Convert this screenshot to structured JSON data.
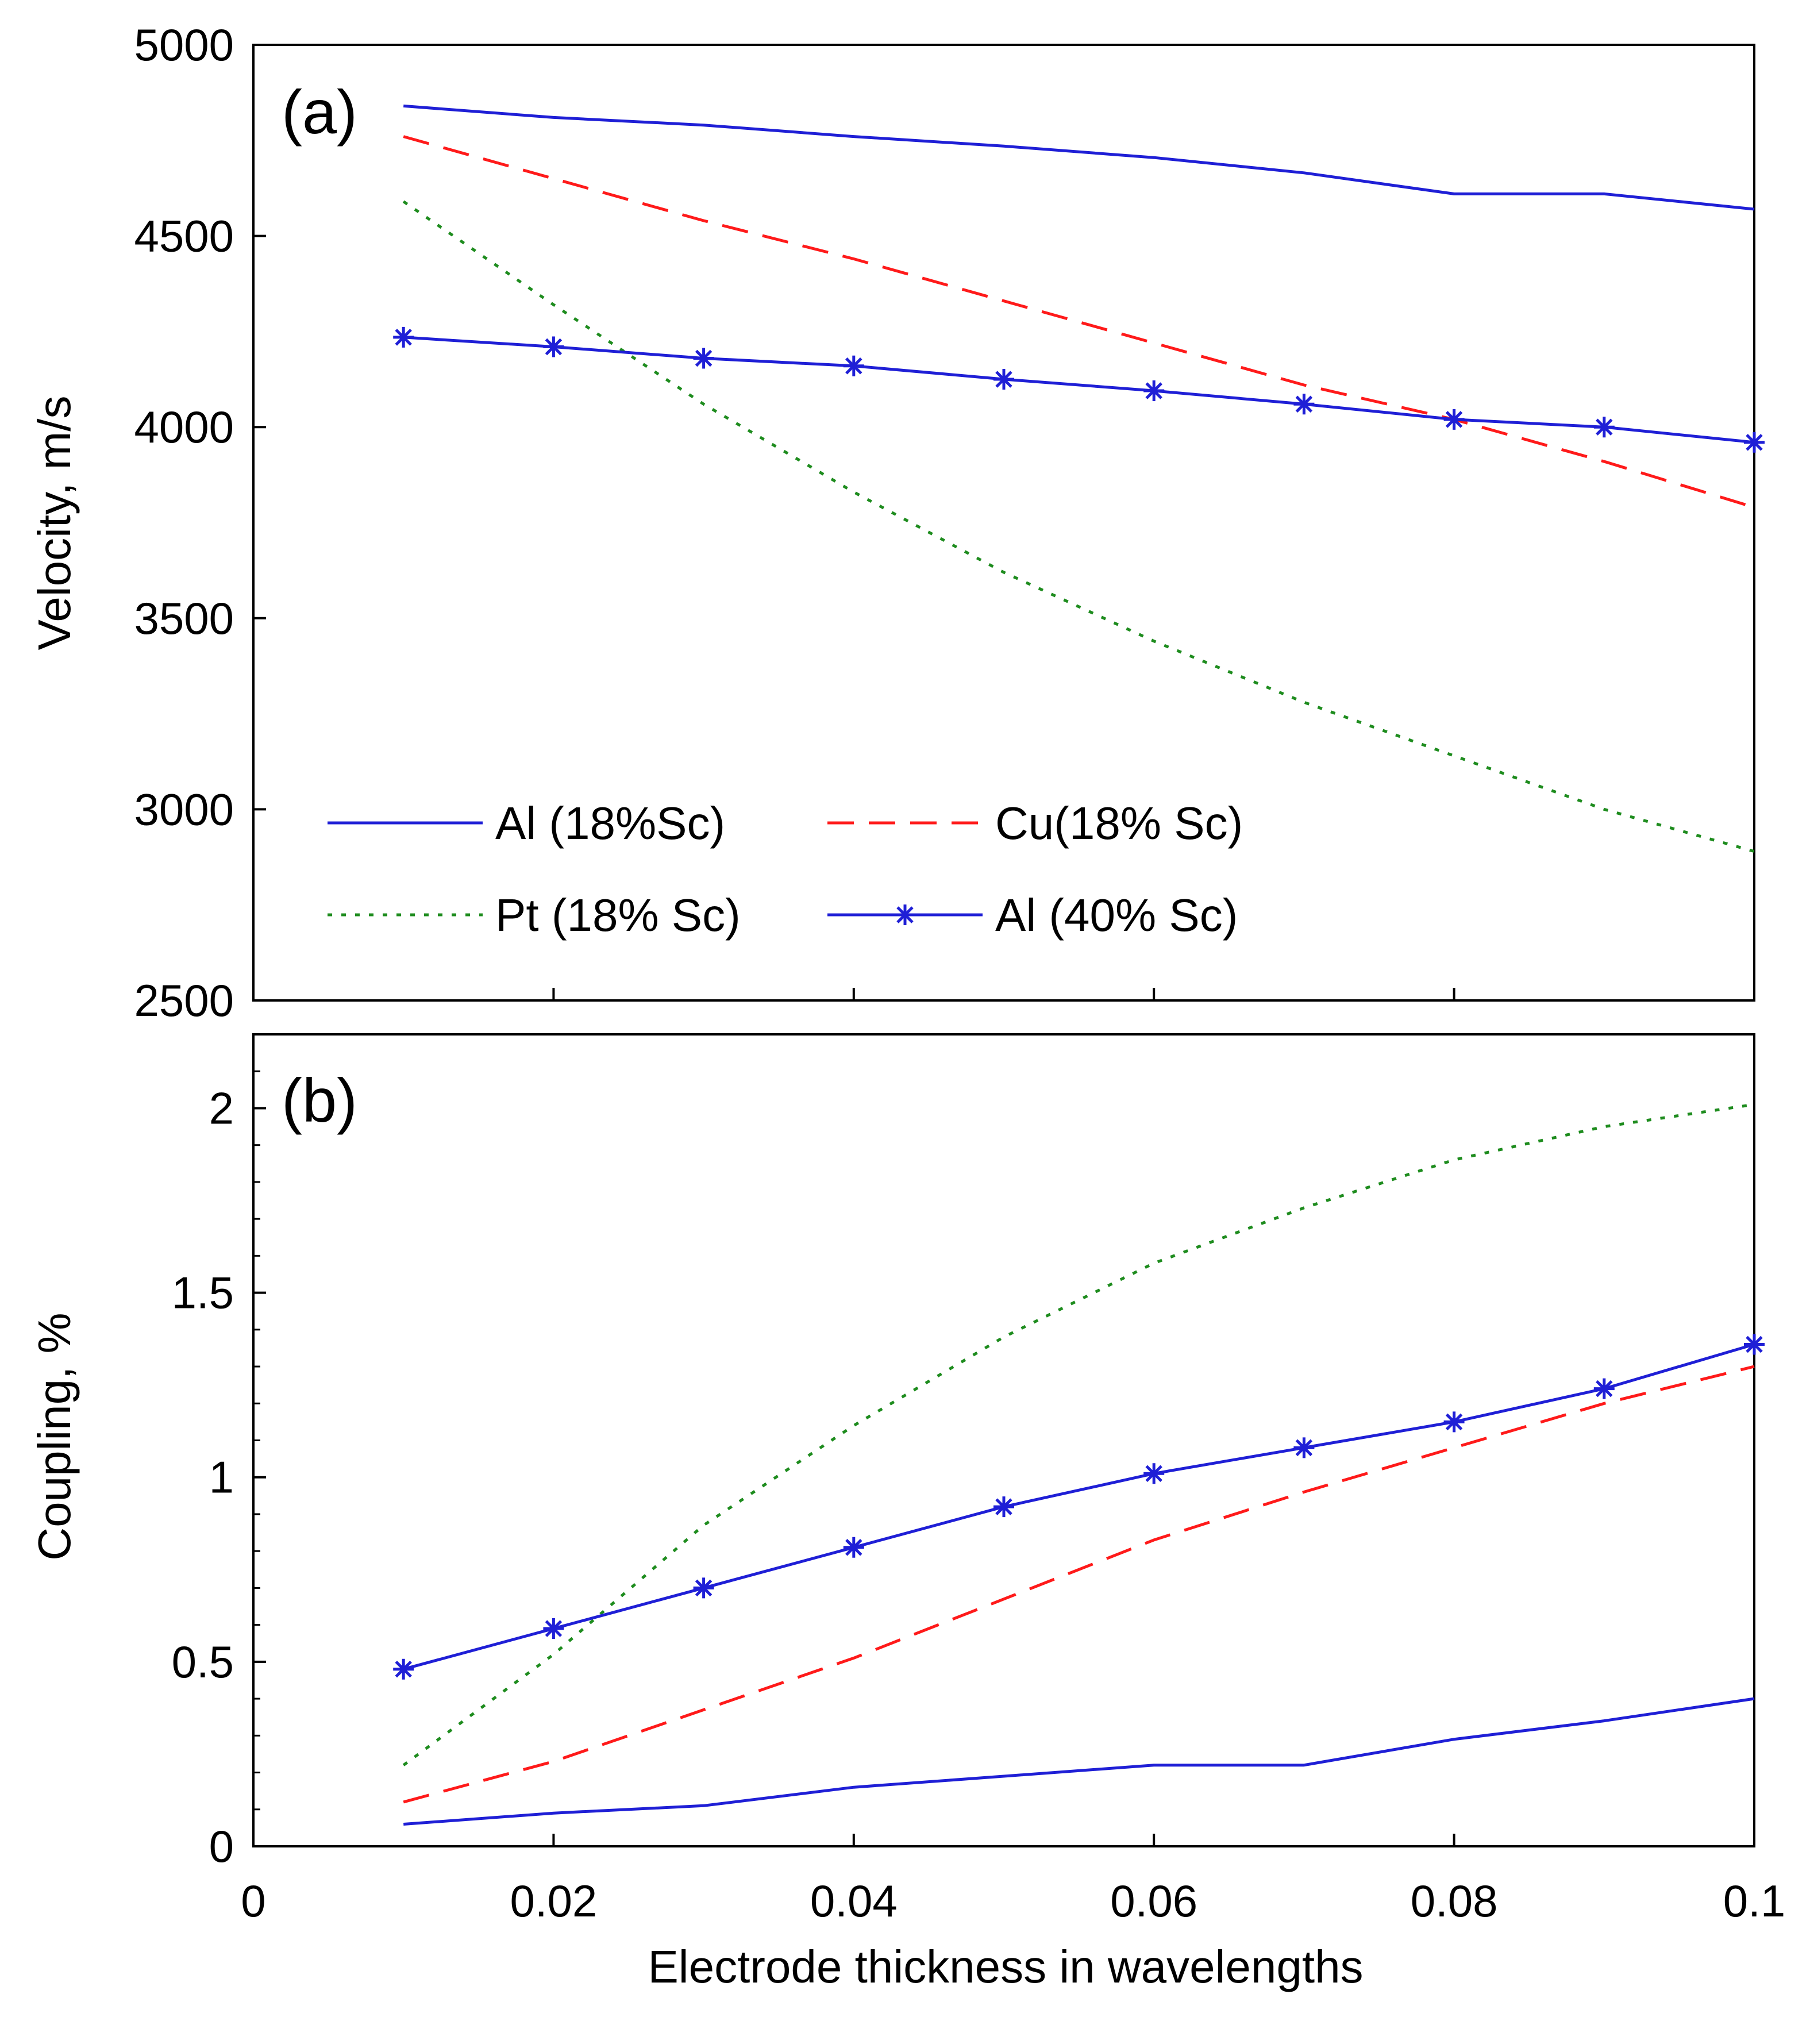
{
  "figure": {
    "xlabel": "Electrode thickness in wavelengths",
    "x_ticks": [
      "0",
      "0.02",
      "0.04",
      "0.06",
      "0.08",
      "0.1"
    ],
    "x_tick_values": [
      0,
      0.02,
      0.04,
      0.06,
      0.08,
      0.1
    ],
    "xlim": [
      0,
      0.1
    ]
  },
  "legend": [
    {
      "label": "Al (18%Sc)",
      "series": "al18"
    },
    {
      "label": "Cu(18% Sc)",
      "series": "cu18"
    },
    {
      "label": "Pt (18% Sc)",
      "series": "pt18"
    },
    {
      "label": "Al (40% Sc)",
      "series": "al40"
    }
  ],
  "series_styles": {
    "al18": {
      "color": "#1f1fd6",
      "dash": "solid",
      "marker": "none"
    },
    "cu18": {
      "color": "#ff1a1a",
      "dash": "dashed",
      "marker": "none"
    },
    "pt18": {
      "color": "#1e8c1e",
      "dash": "dotted",
      "marker": "none"
    },
    "al40": {
      "color": "#1f1fd6",
      "dash": "solid",
      "marker": "asterisk"
    }
  },
  "chart_data": [
    {
      "type": "line",
      "panel_label": "(a)",
      "title": "",
      "xlabel": "",
      "ylabel": "Velocity, m/s",
      "xlim": [
        0,
        0.1
      ],
      "ylim": [
        2500,
        5000
      ],
      "y_ticks": [
        "2500",
        "3000",
        "3500",
        "4000",
        "4500",
        "5000"
      ],
      "y_tick_values": [
        2500,
        3000,
        3500,
        4000,
        4500,
        5000
      ],
      "x": [
        0.01,
        0.02,
        0.03,
        0.04,
        0.05,
        0.06,
        0.07,
        0.08,
        0.09,
        0.1
      ],
      "series": [
        {
          "key": "al18",
          "name": "Al (18%Sc)",
          "values": [
            4840,
            4810,
            4790,
            4760,
            4735,
            4705,
            4665,
            4610,
            4610,
            4570
          ]
        },
        {
          "key": "cu18",
          "name": "Cu(18% Sc)",
          "values": [
            4760,
            4650,
            4540,
            4440,
            4330,
            4220,
            4110,
            4020,
            3910,
            3790
          ]
        },
        {
          "key": "pt18",
          "name": "Pt (18% Sc)",
          "values": [
            4590,
            4320,
            4060,
            3830,
            3620,
            3440,
            3280,
            3140,
            3000,
            2890
          ]
        },
        {
          "key": "al40",
          "name": "Al (40% Sc)",
          "values": [
            4235,
            4210,
            4180,
            4160,
            4125,
            4095,
            4060,
            4020,
            4000,
            3960
          ]
        }
      ],
      "legend_position": "bottom-left"
    },
    {
      "type": "line",
      "panel_label": "(b)",
      "title": "",
      "xlabel": "Electrode thickness in wavelengths",
      "ylabel": "Coupling, %",
      "xlim": [
        0,
        0.1
      ],
      "ylim": [
        0,
        2.2
      ],
      "y_ticks": [
        "0",
        "0.5",
        "1",
        "1.5",
        "2"
      ],
      "y_tick_values": [
        0,
        0.5,
        1,
        1.5,
        2
      ],
      "x": [
        0.01,
        0.02,
        0.03,
        0.04,
        0.05,
        0.06,
        0.07,
        0.08,
        0.09,
        0.1
      ],
      "series": [
        {
          "key": "al18",
          "name": "Al (18%Sc)",
          "values": [
            0.06,
            0.09,
            0.11,
            0.16,
            0.19,
            0.22,
            0.22,
            0.29,
            0.34,
            0.4
          ]
        },
        {
          "key": "cu18",
          "name": "Cu(18% Sc)",
          "values": [
            0.12,
            0.23,
            0.37,
            0.51,
            0.67,
            0.83,
            0.96,
            1.08,
            1.2,
            1.3
          ]
        },
        {
          "key": "pt18",
          "name": "Pt (18% Sc)",
          "values": [
            0.22,
            0.52,
            0.87,
            1.14,
            1.38,
            1.58,
            1.73,
            1.86,
            1.95,
            2.01
          ]
        },
        {
          "key": "al40",
          "name": "Al (40% Sc)",
          "values": [
            0.48,
            0.59,
            0.7,
            0.81,
            0.92,
            1.01,
            1.08,
            1.15,
            1.24,
            1.36
          ]
        }
      ]
    }
  ]
}
